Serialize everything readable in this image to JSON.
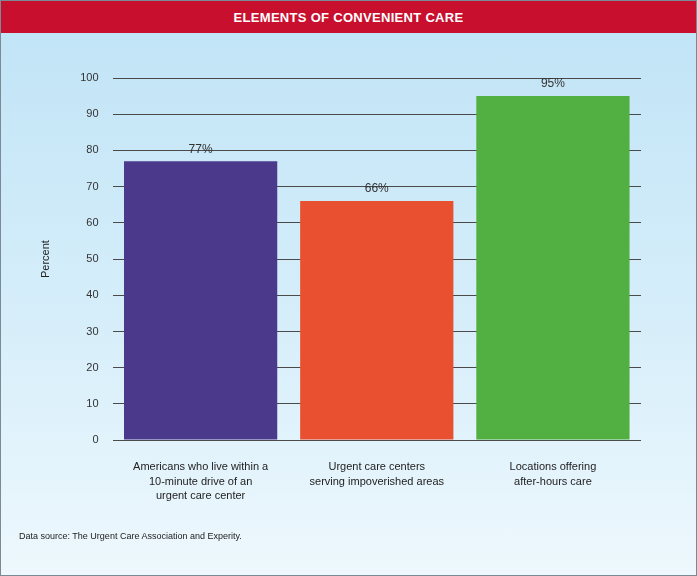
{
  "chart_data": {
    "type": "bar",
    "title": "ELEMENTS OF CONVENIENT CARE",
    "y_label": "Percent",
    "categories": [
      [
        "Americans who live within a",
        "10-minute drive of an",
        "urgent care center"
      ],
      [
        "Urgent care centers",
        "serving impoverished areas"
      ],
      [
        "Locations offering",
        "after-hours care"
      ]
    ],
    "values": [
      77,
      66,
      95
    ],
    "value_labels": [
      "77%",
      "66%",
      "95%"
    ],
    "data_labels": true,
    "colors": [
      "#4b3a8c",
      "#e8502f",
      "#52b043"
    ],
    "ylim": [
      0,
      100
    ],
    "yticks": [
      0,
      10,
      20,
      30,
      40,
      50,
      60,
      70,
      80,
      90,
      100
    ],
    "grid": true,
    "source": "Data source: The Urgent Care Association and Experity."
  }
}
